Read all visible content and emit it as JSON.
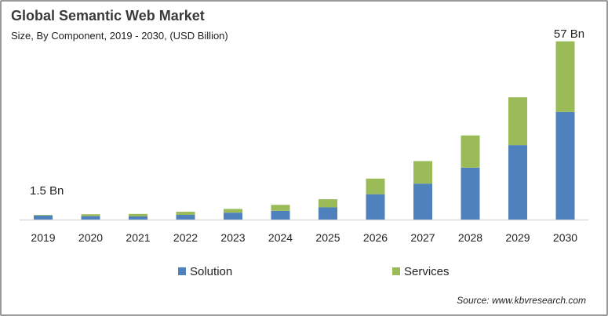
{
  "chart_data": {
    "type": "bar",
    "stacked": true,
    "title": "Global Semantic Web Market",
    "subtitle": "Size, By Component,  2019 - 2030, (USD Billion)",
    "categories": [
      "2019",
      "2020",
      "2021",
      "2022",
      "2023",
      "2024",
      "2025",
      "2026",
      "2027",
      "2028",
      "2029",
      "2030"
    ],
    "series": [
      {
        "name": "Solution",
        "color": "#4f81bd",
        "values": [
          1.3,
          1.1,
          1.0,
          1.5,
          2.2,
          2.8,
          3.9,
          8.1,
          11.5,
          16.6,
          23.8,
          34.4
        ]
      },
      {
        "name": "Services",
        "color": "#9bbb59",
        "values": [
          0.2,
          0.6,
          0.8,
          1.0,
          1.2,
          1.9,
          2.6,
          5.0,
          7.2,
          10.3,
          15.3,
          22.6
        ]
      }
    ],
    "annotations": [
      {
        "category": "2019",
        "text": "1.5 Bn"
      },
      {
        "category": "2030",
        "text": "57 Bn"
      }
    ],
    "ylim": [
      0,
      57
    ],
    "grid": false,
    "legend_position": "bottom",
    "source": "Source: www.kbvresearch.com"
  }
}
